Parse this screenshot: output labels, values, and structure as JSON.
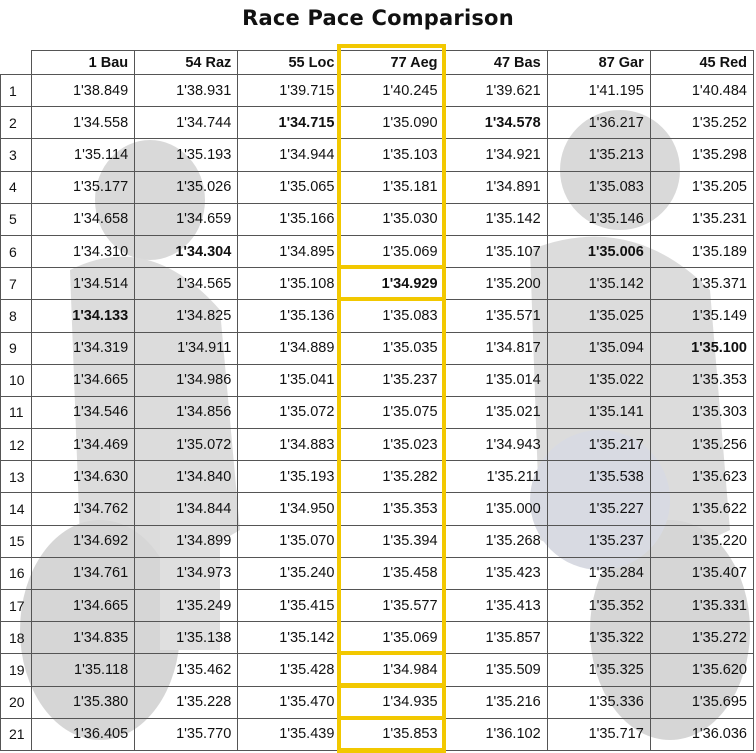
{
  "title": "Race Pace Comparison",
  "accent_color": "#f2c800",
  "drivers": [
    "1 Bau",
    "54 Raz",
    "55 Loc",
    "77 Aeg",
    "47 Bas",
    "87 Gar",
    "45 Red"
  ],
  "highlighted_driver": "77 Aeg",
  "laps": [
    {
      "lap": "1",
      "times": [
        "1'38.849",
        "1'38.931",
        "1'39.715",
        "1'40.245",
        "1'39.621",
        "1'41.195",
        "1'40.484"
      ]
    },
    {
      "lap": "2",
      "times": [
        "1'34.558",
        "1'34.744",
        "1'34.715",
        "1'35.090",
        "1'34.578",
        "1'36.217",
        "1'35.252"
      ]
    },
    {
      "lap": "3",
      "times": [
        "1'35.114",
        "1'35.193",
        "1'34.944",
        "1'35.103",
        "1'34.921",
        "1'35.213",
        "1'35.298"
      ]
    },
    {
      "lap": "4",
      "times": [
        "1'35.177",
        "1'35.026",
        "1'35.065",
        "1'35.181",
        "1'34.891",
        "1'35.083",
        "1'35.205"
      ]
    },
    {
      "lap": "5",
      "times": [
        "1'34.658",
        "1'34.659",
        "1'35.166",
        "1'35.030",
        "1'35.142",
        "1'35.146",
        "1'35.231"
      ]
    },
    {
      "lap": "6",
      "times": [
        "1'34.310",
        "1'34.304",
        "1'34.895",
        "1'35.069",
        "1'35.107",
        "1'35.006",
        "1'35.189"
      ]
    },
    {
      "lap": "7",
      "times": [
        "1'34.514",
        "1'34.565",
        "1'35.108",
        "1'34.929",
        "1'35.200",
        "1'35.142",
        "1'35.371"
      ]
    },
    {
      "lap": "8",
      "times": [
        "1'34.133",
        "1'34.825",
        "1'35.136",
        "1'35.083",
        "1'35.571",
        "1'35.025",
        "1'35.149"
      ]
    },
    {
      "lap": "9",
      "times": [
        "1'34.319",
        "1'34.911",
        "1'34.889",
        "1'35.035",
        "1'34.817",
        "1'35.094",
        "1'35.100"
      ]
    },
    {
      "lap": "10",
      "times": [
        "1'34.665",
        "1'34.986",
        "1'35.041",
        "1'35.237",
        "1'35.014",
        "1'35.022",
        "1'35.353"
      ]
    },
    {
      "lap": "11",
      "times": [
        "1'34.546",
        "1'34.856",
        "1'35.072",
        "1'35.075",
        "1'35.021",
        "1'35.141",
        "1'35.303"
      ]
    },
    {
      "lap": "12",
      "times": [
        "1'34.469",
        "1'35.072",
        "1'34.883",
        "1'35.023",
        "1'34.943",
        "1'35.217",
        "1'35.256"
      ]
    },
    {
      "lap": "13",
      "times": [
        "1'34.630",
        "1'34.840",
        "1'35.193",
        "1'35.282",
        "1'35.211",
        "1'35.538",
        "1'35.623"
      ]
    },
    {
      "lap": "14",
      "times": [
        "1'34.762",
        "1'34.844",
        "1'34.950",
        "1'35.353",
        "1'35.000",
        "1'35.227",
        "1'35.622"
      ]
    },
    {
      "lap": "15",
      "times": [
        "1'34.692",
        "1'34.899",
        "1'35.070",
        "1'35.394",
        "1'35.268",
        "1'35.237",
        "1'35.220"
      ]
    },
    {
      "lap": "16",
      "times": [
        "1'34.761",
        "1'34.973",
        "1'35.240",
        "1'35.458",
        "1'35.423",
        "1'35.284",
        "1'35.407"
      ]
    },
    {
      "lap": "17",
      "times": [
        "1'34.665",
        "1'35.249",
        "1'35.415",
        "1'35.577",
        "1'35.413",
        "1'35.352",
        "1'35.331"
      ]
    },
    {
      "lap": "18",
      "times": [
        "1'34.835",
        "1'35.138",
        "1'35.142",
        "1'35.069",
        "1'35.857",
        "1'35.322",
        "1'35.272"
      ]
    },
    {
      "lap": "19",
      "times": [
        "1'35.118",
        "1'35.462",
        "1'35.428",
        "1'34.984",
        "1'35.509",
        "1'35.325",
        "1'35.620"
      ]
    },
    {
      "lap": "20",
      "times": [
        "1'35.380",
        "1'35.228",
        "1'35.470",
        "1'34.935",
        "1'35.216",
        "1'35.336",
        "1'35.695"
      ]
    },
    {
      "lap": "21",
      "times": [
        "1'36.405",
        "1'35.770",
        "1'35.439",
        "1'35.853",
        "1'36.102",
        "1'35.717",
        "1'36.036"
      ]
    }
  ],
  "best_laps": [
    {
      "driver": "1 Bau",
      "lap": "8"
    },
    {
      "driver": "54 Raz",
      "lap": "6"
    },
    {
      "driver": "55 Loc",
      "lap": "2"
    },
    {
      "driver": "77 Aeg",
      "lap": "7"
    },
    {
      "driver": "47 Bas",
      "lap": "2"
    },
    {
      "driver": "87 Gar",
      "lap": "6"
    },
    {
      "driver": "45 Red",
      "lap": "9"
    }
  ],
  "highlighted_laps": [
    "7",
    "19",
    "20",
    "21"
  ]
}
